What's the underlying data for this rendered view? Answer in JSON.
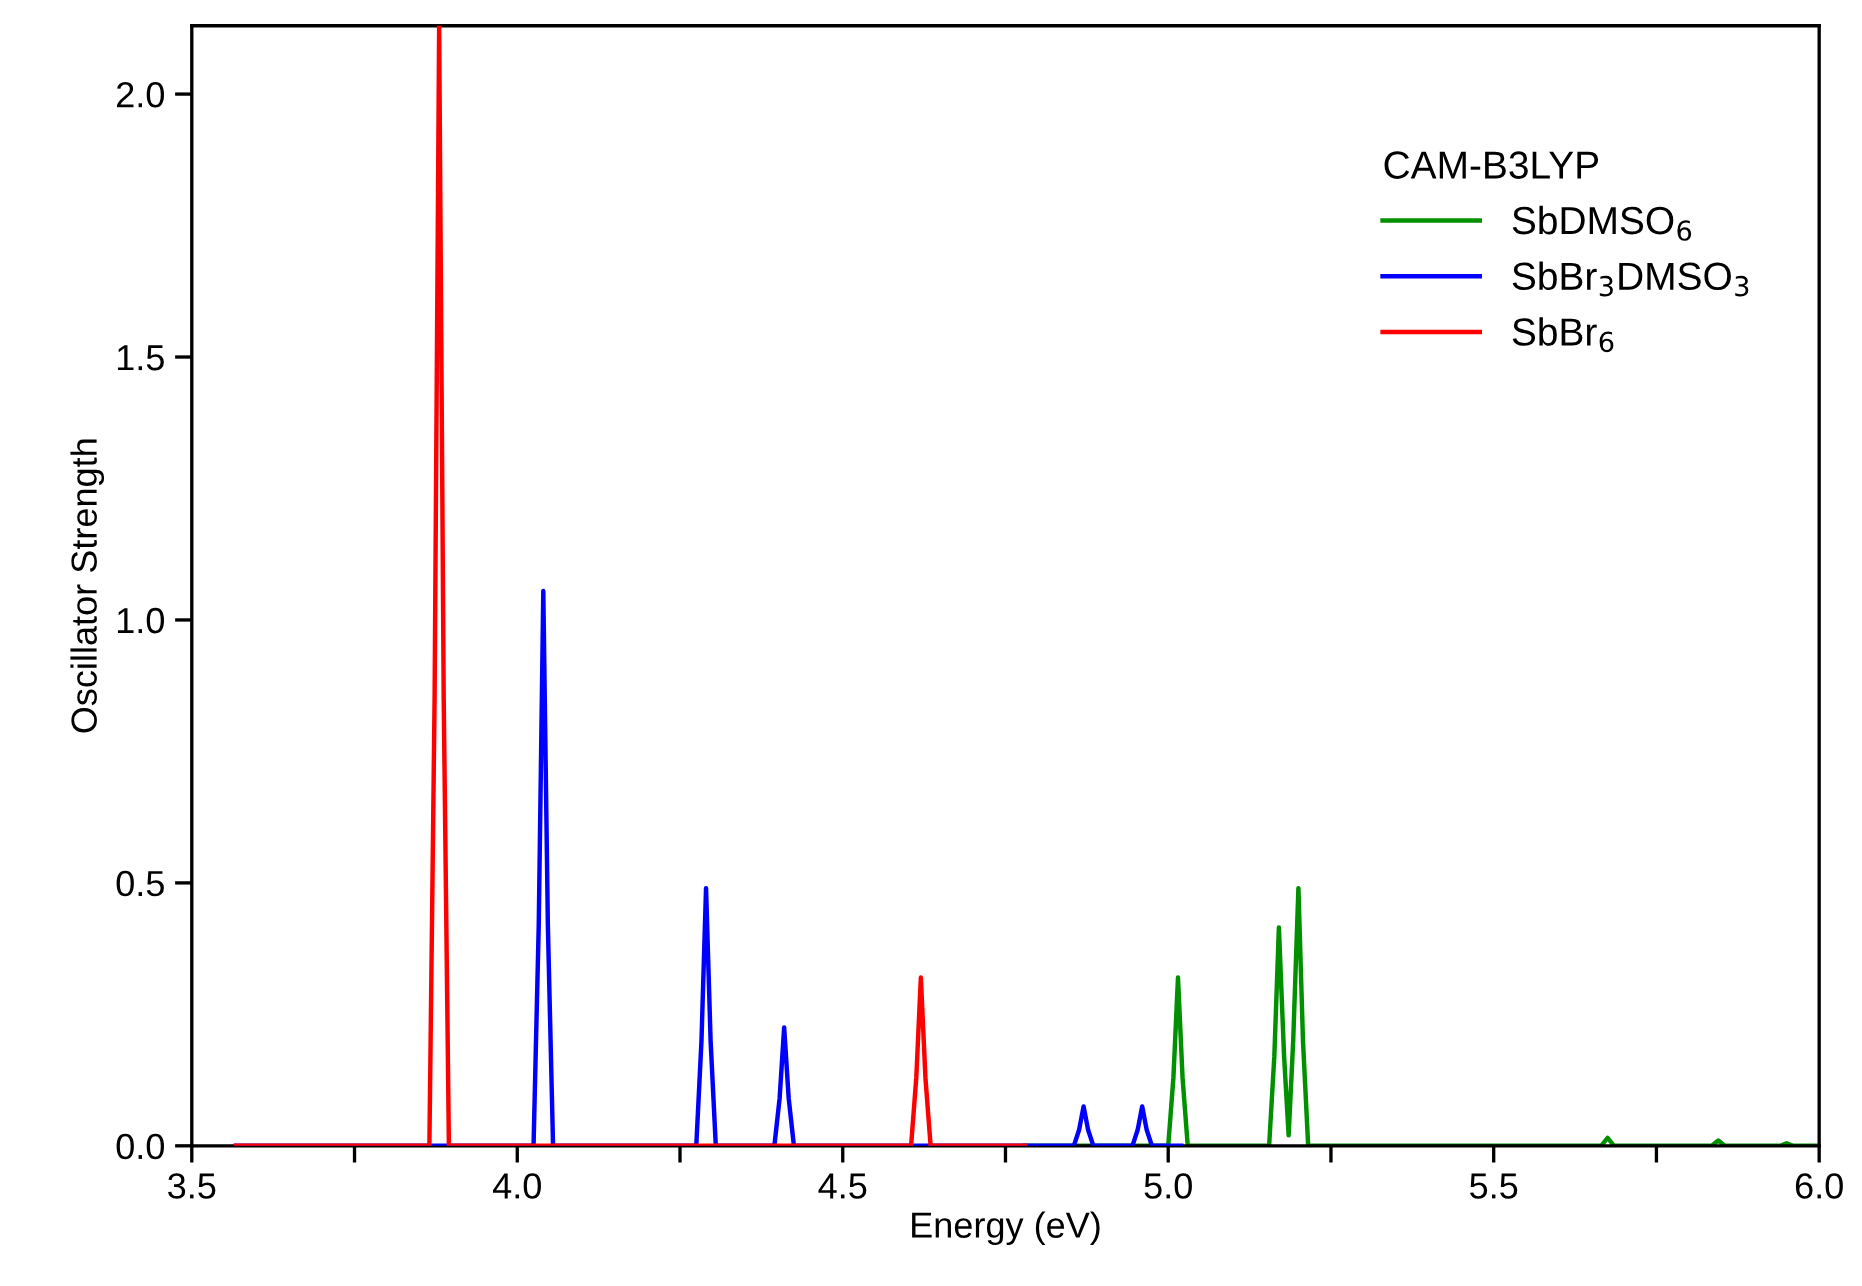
{
  "chart_data": {
    "type": "line",
    "xlabel": "Energy (eV)",
    "ylabel": "Oscillator Strength",
    "legend_title": "CAM-B3LYP",
    "series": [
      {
        "name": "SbDMSO$_{6}$",
        "color": "#009000",
        "x": [
          4.78,
          5.0,
          5.008,
          5.015,
          5.022,
          5.03,
          5.155,
          5.163,
          5.17,
          5.178,
          5.185,
          5.192,
          5.2,
          5.207,
          5.215,
          5.665,
          5.675,
          5.685,
          5.835,
          5.845,
          5.855,
          5.94,
          5.95,
          5.96,
          6.0
        ],
        "values": [
          0,
          0,
          0.13,
          0.32,
          0.13,
          0,
          0,
          0.17,
          0.415,
          0.17,
          0.02,
          0.2,
          0.49,
          0.2,
          0,
          0,
          0.015,
          0,
          0,
          0.01,
          0,
          0,
          0.005,
          0,
          0
        ]
      },
      {
        "name": "SbBr$_{3}$DMSO$_{3}$",
        "color": "#0000ff",
        "x": [
          3.568,
          4.025,
          4.033,
          4.04,
          4.047,
          4.055,
          4.275,
          4.283,
          4.29,
          4.297,
          4.305,
          4.395,
          4.403,
          4.41,
          4.417,
          4.425,
          4.855,
          4.863,
          4.87,
          4.877,
          4.885,
          4.945,
          4.953,
          4.96,
          4.967,
          4.975,
          5.02
        ],
        "values": [
          0,
          0,
          0.42,
          1.055,
          0.42,
          0,
          0,
          0.2,
          0.49,
          0.2,
          0,
          0,
          0.09,
          0.225,
          0.09,
          0,
          0,
          0.03,
          0.075,
          0.03,
          0,
          0,
          0.03,
          0.075,
          0.03,
          0,
          0
        ]
      },
      {
        "name": "SbBr$_{6}$",
        "color": "#ff0000",
        "x": [
          3.568,
          3.865,
          3.873,
          3.88,
          3.887,
          3.895,
          4.605,
          4.613,
          4.62,
          4.627,
          4.635,
          4.78
        ],
        "values": [
          0,
          0,
          0.85,
          2.13,
          0.85,
          0,
          0,
          0.13,
          0.32,
          0.13,
          0,
          0
        ]
      }
    ],
    "xlim": [
      3.5,
      6.0
    ],
    "ylim": [
      0,
      2.13
    ],
    "xticks": [
      {
        "value": 3.5,
        "label": "3.5"
      },
      {
        "value": 3.75,
        "label": null
      },
      {
        "value": 4.0,
        "label": "4.0"
      },
      {
        "value": 4.25,
        "label": null
      },
      {
        "value": 4.5,
        "label": "4.5"
      },
      {
        "value": 4.75,
        "label": null
      },
      {
        "value": 5.0,
        "label": "5.0"
      },
      {
        "value": 5.25,
        "label": null
      },
      {
        "value": 5.5,
        "label": "5.5"
      },
      {
        "value": 5.75,
        "label": null
      },
      {
        "value": 6.0,
        "label": "6.0"
      }
    ],
    "yticks": [
      {
        "value": 0,
        "label": "0.0"
      },
      {
        "value": 0.5,
        "label": "0.5"
      },
      {
        "value": 1.0,
        "label": "1.0"
      },
      {
        "value": 1.5,
        "label": "1.5"
      },
      {
        "value": 2.0,
        "label": "2.0"
      }
    ],
    "legend": "top right",
    "grid": false,
    "line_style": "solid",
    "marker": "none"
  }
}
